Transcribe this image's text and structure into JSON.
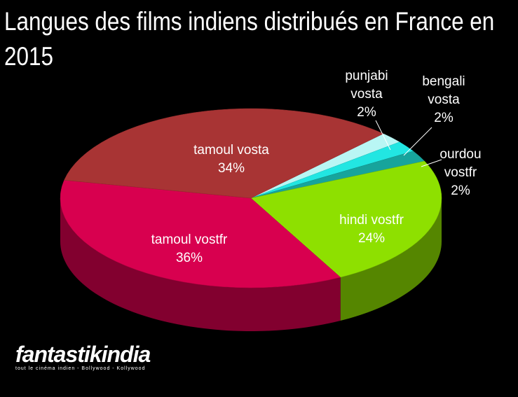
{
  "chart_data": {
    "type": "pie",
    "title": "Langues des films indiens distribués en France en 2015",
    "categories": [
      "punjabi vosta",
      "bengali vosta",
      "ourdou vostfr",
      "hindi vostfr",
      "tamoul vostfr",
      "tamoul vosta"
    ],
    "values": [
      2,
      2,
      2,
      24,
      36,
      34
    ],
    "value_labels": [
      "2%",
      "2%",
      "2%",
      "24%",
      "36%",
      "34%"
    ],
    "colors": [
      "#b9f6f4",
      "#22e6e2",
      "#17a49c",
      "#8ee000",
      "#d8004f",
      "#a83434"
    ]
  },
  "logo": {
    "name": "fantastikindia",
    "tagline": "tout le cinéma indien - Bollywood - Kollywood"
  }
}
